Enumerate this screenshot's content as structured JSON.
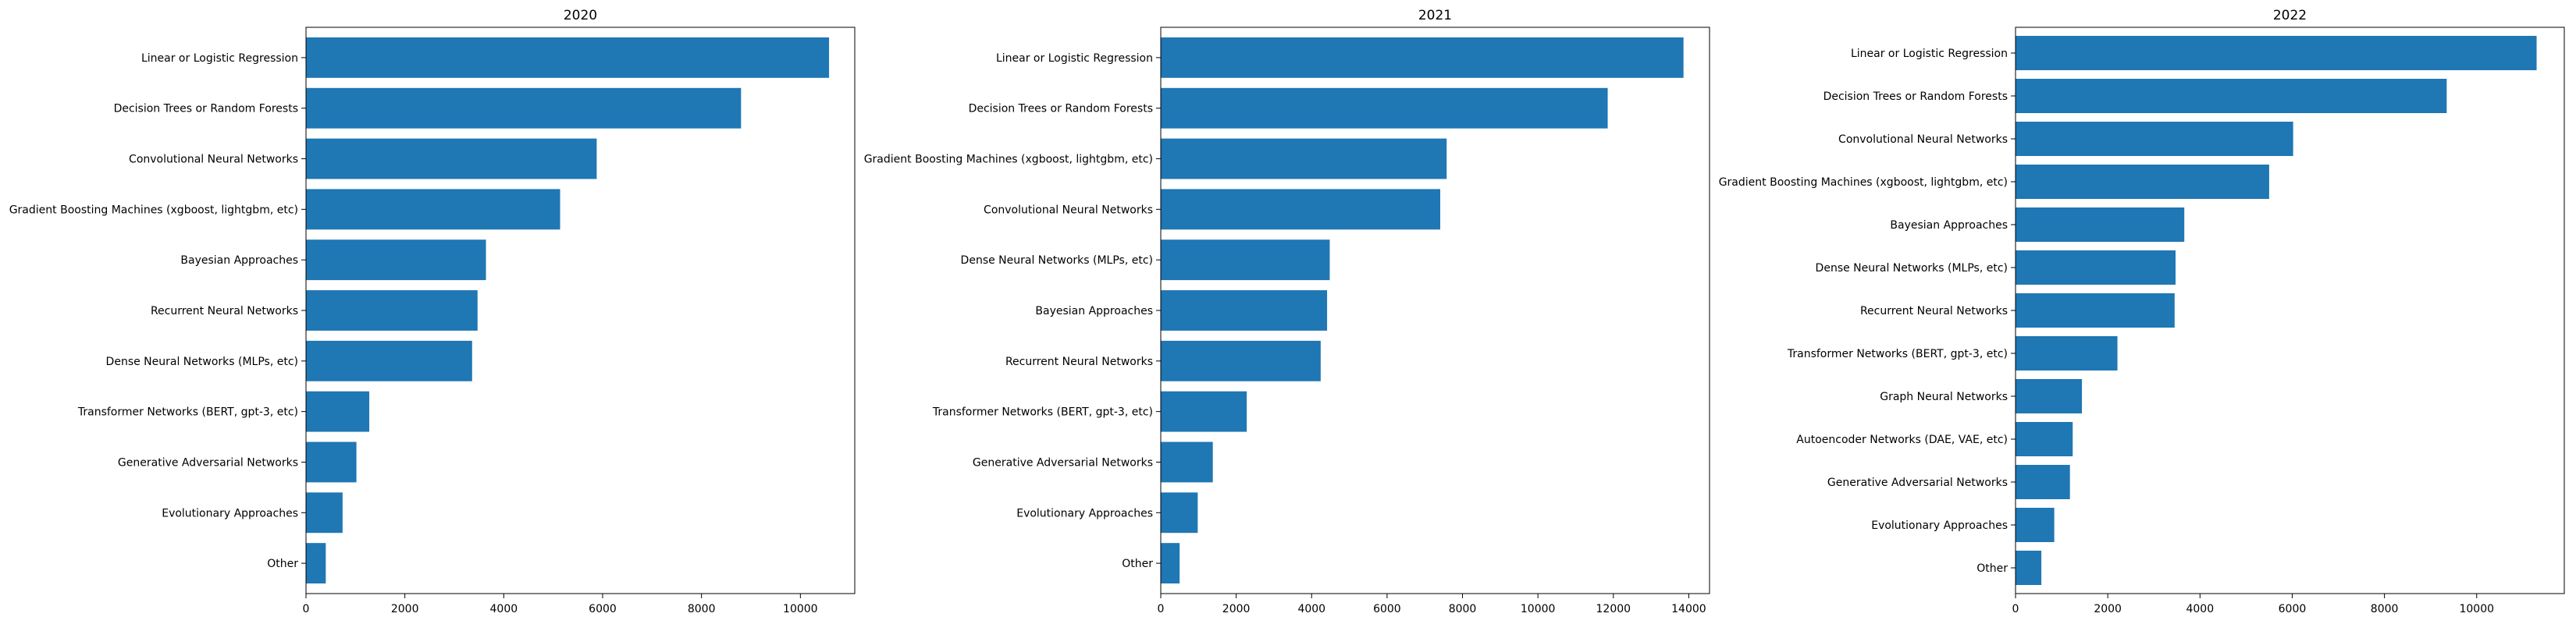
{
  "colors": {
    "bar": "#1f77b4",
    "axis": "#000000",
    "background": "#ffffff"
  },
  "chart_data": [
    {
      "type": "bar",
      "orientation": "horizontal",
      "title": "2020",
      "xlabel": "",
      "ylabel": "",
      "xlim": [
        0,
        11100
      ],
      "xticks": [
        "0",
        "2000",
        "4000",
        "6000",
        "8000",
        "10000"
      ],
      "grid": false,
      "categories": [
        "Linear or Logistic Regression",
        "Decision Trees or Random Forests",
        "Convolutional Neural Networks",
        "Gradient Boosting Machines (xgboost, lightgbm, etc)",
        "Bayesian Approaches",
        "Recurrent Neural Networks",
        "Dense Neural Networks (MLPs, etc)",
        "Transformer Networks (BERT, gpt-3, etc)",
        "Generative Adversarial Networks",
        "Evolutionary Approaches",
        "Other"
      ],
      "values": [
        10580,
        8800,
        5880,
        5140,
        3640,
        3470,
        3360,
        1280,
        1020,
        740,
        400
      ]
    },
    {
      "type": "bar",
      "orientation": "horizontal",
      "title": "2021",
      "xlabel": "",
      "ylabel": "",
      "xlim": [
        0,
        14550
      ],
      "xticks": [
        "0",
        "2000",
        "4000",
        "6000",
        "8000",
        "10000",
        "12000",
        "14000"
      ],
      "grid": false,
      "categories": [
        "Linear or Logistic Regression",
        "Decision Trees or Random Forests",
        "Gradient Boosting Machines (xgboost, lightgbm, etc)",
        "Convolutional Neural Networks",
        "Dense Neural Networks (MLPs, etc)",
        "Bayesian Approaches",
        "Recurrent Neural Networks",
        "Transformer Networks (BERT, gpt-3, etc)",
        "Generative Adversarial Networks",
        "Evolutionary Approaches",
        "Other"
      ],
      "values": [
        13860,
        11850,
        7580,
        7410,
        4480,
        4410,
        4240,
        2280,
        1380,
        980,
        500
      ]
    },
    {
      "type": "bar",
      "orientation": "horizontal",
      "title": "2022",
      "xlabel": "",
      "ylabel": "",
      "xlim": [
        0,
        11900
      ],
      "xticks": [
        "0",
        "2000",
        "4000",
        "6000",
        "8000",
        "10000"
      ],
      "grid": false,
      "categories": [
        "Linear or Logistic Regression",
        "Decision Trees or Random Forests",
        "Convolutional Neural Networks",
        "Gradient Boosting Machines (xgboost, lightgbm, etc)",
        "Bayesian Approaches",
        "Dense Neural Networks (MLPs, etc)",
        "Recurrent Neural Networks",
        "Transformer Networks (BERT, gpt-3, etc)",
        "Graph Neural Networks",
        "Autoencoder Networks (DAE, VAE, etc)",
        "Generative Adversarial Networks",
        "Evolutionary Approaches",
        "Other"
      ],
      "values": [
        11300,
        9350,
        6020,
        5500,
        3660,
        3470,
        3450,
        2210,
        1440,
        1240,
        1180,
        840,
        560
      ]
    }
  ]
}
